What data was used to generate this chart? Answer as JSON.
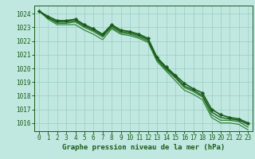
{
  "title": "Graphe pression niveau de la mer (hPa)",
  "bg_color": "#c0e8e0",
  "grid_color": "#98ccc4",
  "line_color_dark": "#1a5c1a",
  "line_color_mid": "#2d7a2d",
  "text_color": "#1a5c1a",
  "xlim": [
    -0.5,
    23.5
  ],
  "ylim": [
    1015.4,
    1024.6
  ],
  "yticks": [
    1016,
    1017,
    1018,
    1019,
    1020,
    1021,
    1022,
    1023,
    1024
  ],
  "xticks": [
    0,
    1,
    2,
    3,
    4,
    5,
    6,
    7,
    8,
    9,
    10,
    11,
    12,
    13,
    14,
    15,
    16,
    17,
    18,
    19,
    20,
    21,
    22,
    23
  ],
  "series": [
    [
      1024.2,
      1023.6,
      1023.2,
      1023.2,
      1023.2,
      1022.8,
      1022.5,
      1022.1,
      1022.9,
      1022.5,
      1022.4,
      1022.2,
      1021.9,
      1020.5,
      1019.8,
      1019.1,
      1018.4,
      1018.1,
      1017.7,
      1016.4,
      1016.0,
      1016.0,
      1015.9,
      1015.5
    ],
    [
      1024.2,
      1023.7,
      1023.3,
      1023.3,
      1023.4,
      1023.0,
      1022.7,
      1022.3,
      1023.0,
      1022.6,
      1022.5,
      1022.3,
      1022.0,
      1020.6,
      1019.9,
      1019.3,
      1018.6,
      1018.3,
      1017.9,
      1016.6,
      1016.2,
      1016.2,
      1016.1,
      1015.7
    ],
    [
      1024.2,
      1023.7,
      1023.4,
      1023.4,
      1023.5,
      1023.1,
      1022.8,
      1022.4,
      1023.1,
      1022.7,
      1022.6,
      1022.4,
      1022.1,
      1020.7,
      1020.0,
      1019.4,
      1018.7,
      1018.4,
      1018.0,
      1016.8,
      1016.4,
      1016.3,
      1016.2,
      1015.9
    ],
    [
      1024.2,
      1023.8,
      1023.5,
      1023.5,
      1023.6,
      1023.2,
      1022.9,
      1022.5,
      1023.2,
      1022.8,
      1022.7,
      1022.5,
      1022.2,
      1020.8,
      1020.1,
      1019.5,
      1018.9,
      1018.5,
      1018.2,
      1017.0,
      1016.6,
      1016.4,
      1016.3,
      1016.0
    ]
  ],
  "marker_color": "#1a5c1a",
  "label_fontsize": 5.5,
  "title_fontsize": 6.5
}
